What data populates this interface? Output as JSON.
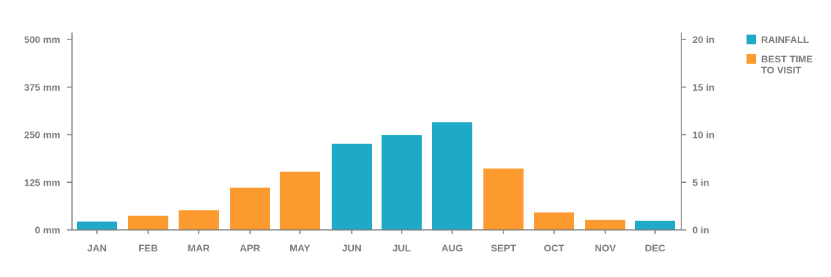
{
  "chart_data": {
    "type": "bar",
    "categories": [
      "JAN",
      "FEB",
      "MAR",
      "APR",
      "MAY",
      "JUN",
      "JUL",
      "AUG",
      "SEPT",
      "OCT",
      "NOV",
      "DEC"
    ],
    "values": [
      22,
      37,
      52,
      111,
      153,
      226,
      249,
      283,
      161,
      46,
      26,
      24
    ],
    "value_unit": "mm",
    "bar_groups": [
      "rainfall",
      "best",
      "best",
      "best",
      "best",
      "rainfall",
      "rainfall",
      "rainfall",
      "best",
      "best",
      "best",
      "rainfall"
    ],
    "ylim": [
      0,
      500
    ],
    "y_ticks_left": [
      "500 mm",
      "375 mm",
      "250 mm",
      "125 mm",
      "0 mm"
    ],
    "y_ticks_right": [
      "20 in",
      "15 in",
      "10 in",
      "5 in",
      "0 in"
    ],
    "legend_position": "right",
    "legend": [
      {
        "key": "rainfall",
        "lines": [
          "RAINFALL"
        ],
        "color": "#1eaac6"
      },
      {
        "key": "best",
        "lines": [
          "BEST TIME",
          "TO VISIT"
        ],
        "color": "#fc9a30"
      }
    ],
    "grid": false
  }
}
